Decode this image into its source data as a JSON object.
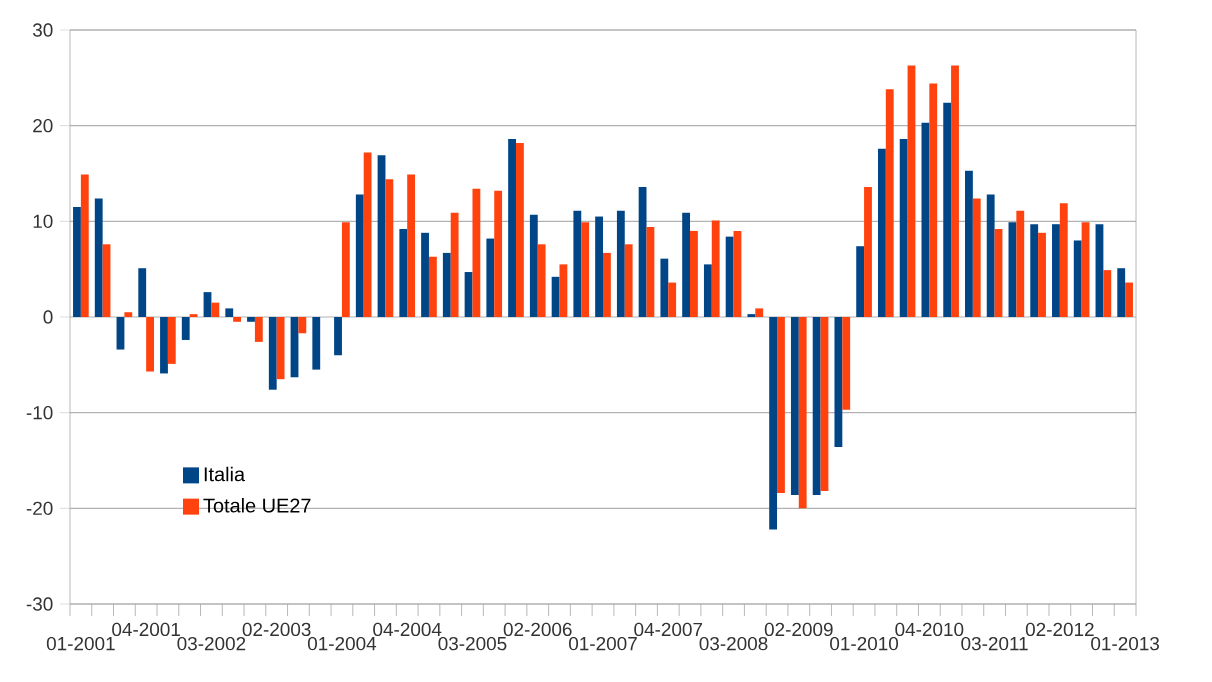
{
  "chart_data": {
    "type": "bar",
    "categories": [
      "01-2001",
      null,
      null,
      "04-2001",
      null,
      null,
      "03-2002",
      null,
      null,
      "02-2003",
      null,
      null,
      "01-2004",
      null,
      null,
      "04-2004",
      null,
      null,
      "03-2005",
      null,
      null,
      "02-2006",
      null,
      null,
      "01-2007",
      null,
      null,
      "04-2007",
      null,
      null,
      "03-2008",
      null,
      null,
      "02-2009",
      null,
      null,
      "01-2010",
      null,
      null,
      "04-2010",
      null,
      null,
      "03-2011",
      null,
      null,
      "02-2012",
      null,
      null,
      "01-2013"
    ],
    "series": [
      {
        "name": "Italia",
        "color": "#004586",
        "values": [
          11.5,
          12.4,
          -3.4,
          5.1,
          -5.9,
          -2.4,
          2.6,
          0.9,
          -0.5,
          -7.6,
          -6.3,
          -5.5,
          -4.0,
          12.8,
          16.9,
          9.2,
          8.8,
          6.7,
          4.7,
          8.2,
          18.6,
          10.7,
          4.2,
          11.1,
          10.5,
          11.1,
          13.6,
          6.1,
          10.9,
          5.5,
          8.4,
          0.3,
          -22.2,
          -18.6,
          -18.6,
          -13.6,
          7.4,
          17.6,
          18.6,
          20.3,
          22.4,
          15.3,
          12.8,
          9.9,
          9.7,
          9.7,
          8.0,
          9.7,
          5.1
        ]
      },
      {
        "name": "Totale UE27",
        "color": "#ff420e",
        "values": [
          14.9,
          7.6,
          0.5,
          -5.7,
          -4.9,
          0.3,
          1.5,
          -0.5,
          -2.6,
          -6.5,
          -1.7,
          0,
          9.9,
          17.2,
          14.4,
          14.9,
          6.3,
          10.9,
          13.4,
          13.2,
          18.2,
          7.6,
          5.5,
          9.9,
          6.7,
          7.6,
          9.4,
          3.6,
          9.0,
          10.1,
          9.0,
          0.9,
          -18.4,
          -20.0,
          -18.2,
          -9.7,
          13.6,
          23.8,
          26.3,
          24.4,
          26.3,
          12.4,
          9.2,
          11.1,
          8.8,
          11.9,
          9.9,
          4.9,
          3.6
        ]
      }
    ],
    "ylim": [
      -30,
      30
    ],
    "yticks": [
      -30,
      -20,
      -10,
      0,
      10,
      20,
      30
    ],
    "grid": "y",
    "legend": "bottom left"
  }
}
